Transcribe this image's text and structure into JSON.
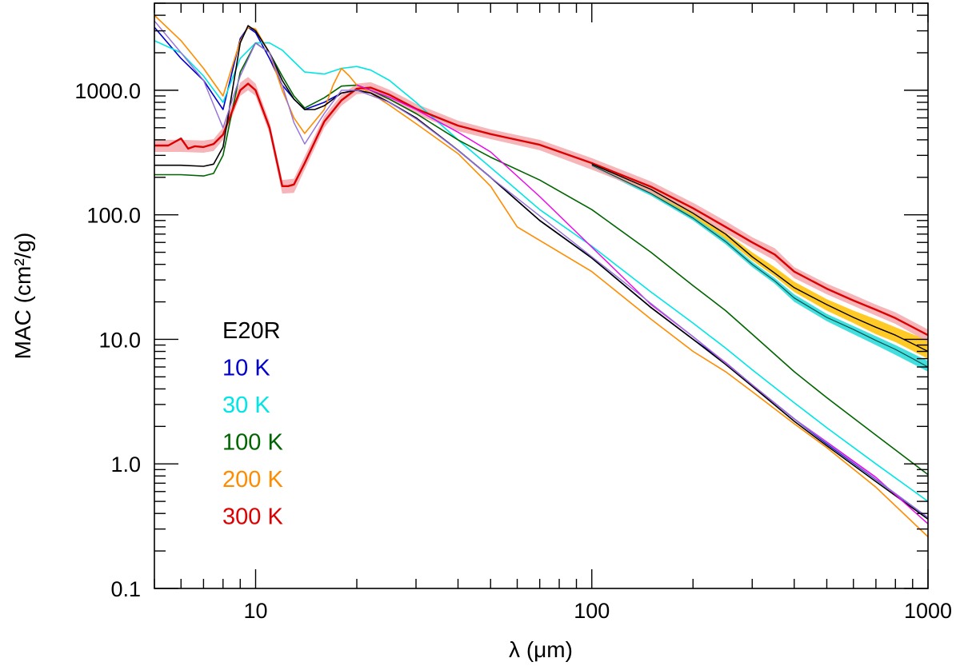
{
  "chart_data": {
    "type": "line",
    "title": "",
    "xlabel": "λ (μm)",
    "ylabel": "MAC (cm²/g)",
    "xscale": "log",
    "yscale": "log",
    "xlim": [
      5,
      1000
    ],
    "ylim": [
      0.1,
      5000
    ],
    "grid": false,
    "legend_position": "bottom-left",
    "x_tick_labels": [
      {
        "value": 10,
        "label": "10"
      },
      {
        "value": 100,
        "label": "100"
      },
      {
        "value": 1000,
        "label": "1000"
      }
    ],
    "y_tick_labels": [
      {
        "value": 0.1,
        "label": "0.1"
      },
      {
        "value": 1,
        "label": "1.0"
      },
      {
        "value": 10,
        "label": "10.0"
      },
      {
        "value": 100,
        "label": "100.0"
      },
      {
        "value": 1000,
        "label": "1000.0"
      }
    ],
    "legend": [
      {
        "label": "E20R",
        "color": "#000000"
      },
      {
        "label": "10 K",
        "color": "#0000cc"
      },
      {
        "label": "30 K",
        "color": "#00e5e5"
      },
      {
        "label": "100 K",
        "color": "#006400"
      },
      {
        "label": "200 K",
        "color": "#ff8c00"
      },
      {
        "label": "300 K",
        "color": "#dd0000"
      }
    ],
    "bands": [
      {
        "name": "30 K",
        "color": "#22d8d8",
        "x": [
          100,
          150,
          200,
          250,
          300,
          350,
          400,
          500,
          600,
          700,
          800,
          1000
        ],
        "lower": [
          240,
          142,
          90,
          58,
          38,
          28,
          20,
          14.0,
          11.0,
          9.0,
          7.5,
          5.5
        ],
        "upper": [
          260,
          155,
          98,
          64,
          42,
          31,
          23,
          16.0,
          12.8,
          10.6,
          9.0,
          6.7
        ]
      },
      {
        "name": "200 K",
        "color": "#ffc000",
        "x": [
          100,
          150,
          200,
          250,
          300,
          350,
          400,
          500,
          600,
          700,
          800,
          1000
        ],
        "lower": [
          245,
          150,
          97,
          64,
          43,
          32,
          24,
          17.0,
          13.5,
          11.0,
          9.5,
          7.0
        ],
        "upper": [
          265,
          165,
          108,
          72,
          50,
          38,
          29,
          21.0,
          17.0,
          14.5,
          12.5,
          9.8
        ]
      },
      {
        "name": "300 K",
        "color": "#f4a8ad",
        "x": [
          5,
          6,
          7,
          7.5,
          8,
          9,
          9.5,
          10,
          11,
          12,
          13,
          14,
          16,
          18,
          20,
          22,
          25,
          30,
          40,
          50,
          70,
          100,
          150,
          200,
          250,
          300,
          350,
          400,
          500,
          600,
          700,
          800,
          1000
        ],
        "lower": [
          320,
          320,
          315,
          325,
          400,
          900,
          1000,
          900,
          450,
          148,
          150,
          230,
          500,
          750,
          930,
          950,
          830,
          640,
          470,
          405,
          330,
          230,
          150,
          102,
          72,
          54,
          43,
          31,
          23,
          18.6,
          15.5,
          13.3,
          9.5
        ],
        "upper": [
          400,
          400,
          395,
          405,
          500,
          1150,
          1280,
          1130,
          560,
          190,
          195,
          295,
          620,
          920,
          1130,
          1160,
          1010,
          780,
          570,
          485,
          400,
          285,
          185,
          125,
          89,
          66,
          54,
          38,
          28,
          22.8,
          19,
          16.5,
          12
        ]
      }
    ],
    "series": [
      {
        "name": "10 K",
        "color": "#0000cc",
        "width": 1.6,
        "x": [
          5,
          6,
          7,
          8,
          9,
          9.5,
          10,
          11,
          12,
          13,
          14,
          16,
          18,
          20,
          22,
          25,
          30,
          40,
          50,
          70,
          100,
          150,
          200,
          250,
          300,
          400,
          500,
          700,
          1000
        ],
        "y": [
          3200,
          1800,
          1200,
          700,
          2600,
          3200,
          2900,
          1800,
          1100,
          850,
          700,
          800,
          950,
          1000,
          950,
          800,
          600,
          330,
          200,
          90,
          45,
          18,
          10,
          6.5,
          4.3,
          2.3,
          1.45,
          0.75,
          0.37
        ]
      },
      {
        "name": "30 K",
        "color": "#00e5e5",
        "width": 1.6,
        "x": [
          5,
          6,
          7,
          8,
          9,
          10,
          11,
          12,
          13,
          14,
          16,
          18,
          20,
          22,
          25,
          30,
          40,
          50,
          70,
          100,
          150,
          200,
          250,
          300,
          400,
          500,
          700,
          1000
        ],
        "y": [
          2500,
          2000,
          1300,
          800,
          1800,
          2400,
          2400,
          2100,
          1700,
          1400,
          1350,
          1500,
          1550,
          1450,
          1200,
          800,
          400,
          240,
          110,
          56,
          24,
          13.5,
          8.5,
          5.7,
          3.1,
          1.95,
          1.0,
          0.5
        ]
      },
      {
        "name": "100 K",
        "color": "#006400",
        "width": 1.6,
        "x": [
          5,
          6,
          7,
          7.5,
          8,
          9,
          10,
          11,
          12,
          13,
          14,
          16,
          18,
          20,
          22,
          25,
          30,
          40,
          50,
          70,
          100,
          150,
          200,
          250,
          300,
          400,
          500,
          700,
          1000
        ],
        "y": [
          210,
          210,
          205,
          215,
          300,
          1400,
          2400,
          2000,
          1300,
          900,
          720,
          870,
          1080,
          1100,
          1000,
          850,
          650,
          400,
          290,
          190,
          110,
          50,
          27,
          17,
          11,
          5.5,
          3.4,
          1.7,
          0.82
        ]
      },
      {
        "name": "200 K",
        "color": "#ff8c00",
        "width": 1.6,
        "x": [
          5,
          6,
          7,
          8,
          9,
          9.5,
          10,
          11,
          12,
          13,
          14,
          16,
          17,
          18,
          19,
          20,
          22,
          25,
          30,
          40,
          50,
          60,
          100,
          150,
          200,
          250,
          300,
          400,
          500,
          700,
          1000
        ],
        "y": [
          4000,
          2500,
          1500,
          900,
          2500,
          3200,
          3100,
          2000,
          1000,
          600,
          450,
          700,
          1100,
          1500,
          1300,
          1100,
          950,
          760,
          540,
          310,
          170,
          80,
          35,
          14.5,
          8,
          5.5,
          3.8,
          2.1,
          1.35,
          0.65,
          0.26
        ]
      },
      {
        "name": "300 K",
        "color": "#dd0000",
        "width": 2.4,
        "x": [
          5,
          5.5,
          6,
          6.3,
          6.6,
          7,
          7.5,
          8,
          9,
          9.5,
          10,
          11,
          12,
          12.5,
          13,
          14,
          16,
          18,
          20,
          22,
          25,
          30,
          40,
          50,
          70,
          100,
          150,
          200,
          250,
          300,
          350,
          400,
          500,
          600,
          700,
          800,
          1000
        ],
        "y": [
          360,
          360,
          410,
          340,
          355,
          350,
          370,
          440,
          1000,
          1130,
          1000,
          500,
          170,
          170,
          175,
          260,
          560,
          830,
          1030,
          1050,
          920,
          710,
          520,
          445,
          365,
          260,
          168,
          113,
          80,
          60,
          48,
          35,
          25.5,
          20.5,
          17.3,
          14.8,
          10.8
        ]
      },
      {
        "name": "E20R",
        "color": "#000000",
        "width": 1.6,
        "x": [
          5,
          6,
          7,
          7.5,
          8,
          9,
          9.5,
          10,
          11,
          12,
          13,
          14,
          15,
          16,
          18,
          20,
          22,
          25,
          30,
          40,
          50,
          70,
          100,
          150,
          200,
          250,
          300,
          400,
          500,
          700,
          1000
        ],
        "y": [
          250,
          250,
          245,
          255,
          350,
          2400,
          3300,
          3000,
          2000,
          1200,
          850,
          700,
          700,
          750,
          950,
          1000,
          950,
          800,
          600,
          330,
          200,
          90,
          45,
          18,
          10,
          6.3,
          4.2,
          2.2,
          1.4,
          0.72,
          0.36
        ]
      },
      {
        "name": "E20R (300 K band centre)",
        "color": "#000000",
        "width": 1.4,
        "x": [
          100,
          150,
          200,
          250,
          300,
          350,
          400,
          500,
          600,
          700,
          800,
          1000
        ],
        "y": [
          255,
          160,
          103,
          70,
          46,
          34,
          26,
          19,
          15,
          12.5,
          10.8,
          8
        ]
      },
      {
        "name": "30 K (band)",
        "color": "#005050",
        "width": 1.2,
        "x": [
          100,
          150,
          200,
          250,
          300,
          350,
          400,
          500,
          600,
          700,
          800,
          1000
        ],
        "y": [
          250,
          148,
          94,
          61,
          40,
          29.5,
          21.5,
          15,
          12,
          9.8,
          8.3,
          6
        ]
      },
      {
        "name": "magenta",
        "color": "#ee00ee",
        "width": 1.4,
        "x": [
          20,
          22,
          25,
          30,
          40,
          50,
          70,
          100,
          150,
          200,
          250,
          300,
          400,
          500,
          700,
          1000
        ],
        "y": [
          1100,
          1000,
          880,
          700,
          460,
          320,
          140,
          55,
          19,
          10.5,
          6.5,
          4.3,
          2.3,
          1.5,
          0.78,
          0.33
        ]
      },
      {
        "name": "purple",
        "color": "#9370db",
        "width": 1.4,
        "x": [
          5,
          6,
          7,
          8,
          9,
          10,
          11,
          12,
          13,
          14,
          16,
          18,
          20,
          25,
          30,
          40,
          50,
          100,
          200,
          400,
          1000
        ],
        "y": [
          3600,
          2000,
          1200,
          500,
          1300,
          2400,
          2000,
          1100,
          550,
          370,
          650,
          1000,
          1000,
          800,
          590,
          330,
          200,
          46,
          10.5,
          2.3,
          0.37
        ]
      }
    ]
  }
}
